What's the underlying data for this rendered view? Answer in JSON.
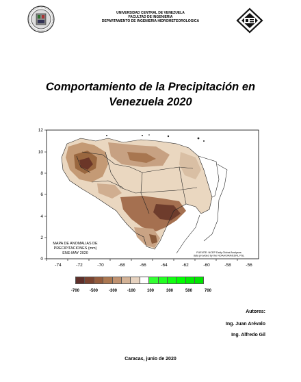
{
  "header": {
    "university": "UNIVERSIDAD CENTRAL DE VENEZUELA",
    "faculty": "FACULTAD DE INGENIERIA",
    "department": "DEPARTAMENTO DE INGENIERIA HIDROMETEOROLOGICA",
    "logo_left": "university-seal-icon",
    "logo_right": "department-logo-icon"
  },
  "title": {
    "line1": "Comportamiento de la Precipitación en",
    "line2": "Venezuela 2020"
  },
  "map": {
    "x_ticks": [
      "-74",
      "-72",
      "-70",
      "-68",
      "-66",
      "-64",
      "-62",
      "-60",
      "-58",
      "-56"
    ],
    "y_ticks": [
      "0",
      "2",
      "4",
      "6",
      "8",
      "10",
      "12"
    ],
    "inset_label_line1": "MAPA DE ANOMALIAS DE",
    "inset_label_line2": "PRECIPITACIONES (mm)",
    "inset_label_line3": "ENE-MAY 2020",
    "source_line1": "FUENTE: NCEP Daily Global Analyses",
    "source_line2": "data provided by the NOAA/OAR/ESRL PSL"
  },
  "legend": {
    "swatch_colors": [
      "#5e2f2a",
      "#7a4330",
      "#955c3d",
      "#ac7851",
      "#c09270",
      "#d3b296",
      "#e6d2bf",
      "#ffffff",
      "#33ff33",
      "#22ff22",
      "#11ff11",
      "#00ff00",
      "#00ee00",
      "#00e600"
    ],
    "labels": [
      "-700",
      "-500",
      "-300",
      "-100",
      "100",
      "300",
      "500",
      "700"
    ]
  },
  "authors": {
    "heading": "Autores:",
    "author1": "Ing. Juan Arévalo",
    "author2": "Ing. Alfredo Gil"
  },
  "footer": {
    "place_date": "Caracas, junio de 2020"
  }
}
